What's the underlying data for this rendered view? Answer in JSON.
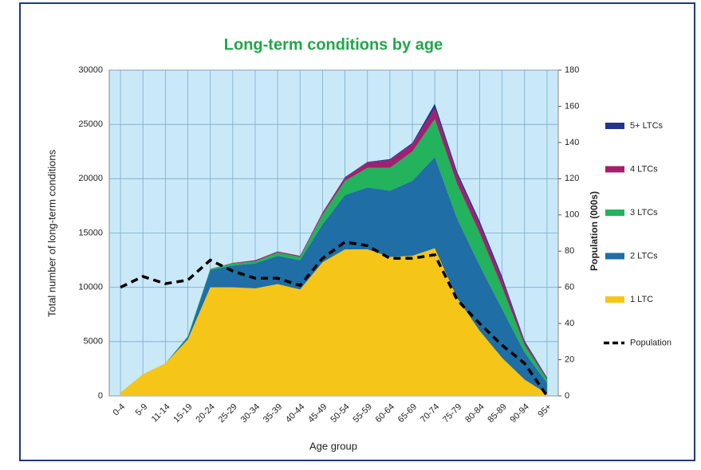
{
  "chart_data": {
    "type": "stacked-area-line",
    "title": "Long-term conditions by age",
    "x_label": "Age group",
    "y_label": "Total number of long-term conditions",
    "y2_label": "Population (000s)",
    "categories": [
      "0-4",
      "5-9",
      "11-14",
      "15-19",
      "20-24",
      "25-29",
      "30-34",
      "35-39",
      "40-44",
      "45-49",
      "50-54",
      "55-59",
      "60-64",
      "65-69",
      "70-74",
      "75-79",
      "80-84",
      "85-89",
      "90-94",
      "95+"
    ],
    "series": [
      {
        "name": "1 LTC",
        "color": "#f5c518",
        "values": [
          300,
          2000,
          3000,
          5200,
          10000,
          10000,
          9900,
          10300,
          9800,
          12300,
          13500,
          13500,
          12800,
          12900,
          13600,
          9000,
          6000,
          3500,
          1500,
          200
        ]
      },
      {
        "name": "2 LTCs",
        "color": "#1f6ea5",
        "values": [
          0,
          0,
          0,
          200,
          1600,
          2000,
          2300,
          2600,
          2700,
          3500,
          5000,
          5700,
          6100,
          6900,
          8400,
          7300,
          6000,
          4500,
          2500,
          1000
        ]
      },
      {
        "name": "3 LTCs",
        "color": "#22b35c",
        "values": [
          0,
          0,
          0,
          100,
          100,
          200,
          200,
          300,
          300,
          900,
          1300,
          1800,
          2100,
          2700,
          3500,
          3200,
          3000,
          2000,
          700,
          300
        ]
      },
      {
        "name": "4 LTCs",
        "color": "#a3206f",
        "values": [
          0,
          0,
          0,
          0,
          0,
          50,
          100,
          100,
          100,
          200,
          300,
          500,
          700,
          700,
          1000,
          800,
          800,
          700,
          300,
          100
        ]
      },
      {
        "name": "5+ LTCs",
        "color": "#1f3590",
        "values": [
          0,
          0,
          0,
          0,
          0,
          0,
          0,
          0,
          0,
          0,
          50,
          50,
          100,
          100,
          400,
          300,
          300,
          300,
          100,
          100
        ]
      },
      {
        "name": "Population",
        "color": "#000000",
        "axis": "y2",
        "dashed": true,
        "values": [
          60,
          66,
          62,
          64,
          75,
          69,
          65,
          65,
          61,
          76,
          85,
          83,
          76,
          76,
          78,
          53,
          40,
          28,
          18,
          0
        ]
      }
    ],
    "ylim": [
      0,
      30000
    ],
    "yticks": [
      0,
      5000,
      10000,
      15000,
      20000,
      25000,
      30000
    ],
    "y2lim": [
      0,
      180
    ],
    "y2ticks": [
      0,
      20,
      40,
      60,
      80,
      100,
      120,
      140,
      160,
      180
    ],
    "grid": true,
    "legend": "right"
  }
}
